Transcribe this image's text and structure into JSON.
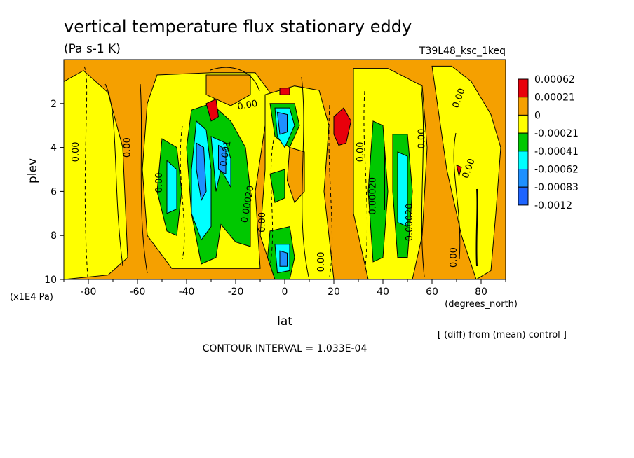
{
  "chart_data": {
    "type": "heatmap",
    "title": "vertical temperature flux stationary eddy",
    "units": "(Pa s-1 K)",
    "run_label": "T39L48_ksc_1keq",
    "xlabel": "lat",
    "x_units": "(degrees_north)",
    "ylabel": "plev",
    "y_units": "(x1E4 Pa)",
    "xlim": [
      -90,
      90
    ],
    "ylim": [
      10,
      0
    ],
    "x_ticks": [
      "-80",
      "-60",
      "-40",
      "-20",
      "0",
      "20",
      "40",
      "60",
      "80"
    ],
    "y_ticks": [
      "2",
      "4",
      "6",
      "8",
      "10"
    ],
    "footnote": "[ (diff) from (mean) control ]",
    "contour_interval": "CONTOUR INTERVAL = 1.033E-04",
    "colorbar": {
      "labels": [
        "0.00062",
        "0.00021",
        "0",
        "-0.00021",
        "-0.00041",
        "-0.00062",
        "-0.00083",
        "-0.0012"
      ],
      "colors": [
        "#e8000b",
        "#f5a000",
        "#ffff00",
        "#00c800",
        "#00ffff",
        "#1e90ff",
        "#1e64ff"
      ]
    },
    "background_color": "#f5a000",
    "regions": [
      {
        "color": "#ffff00",
        "pts": [
          [
            -90,
            1
          ],
          [
            -82,
            0.5
          ],
          [
            -72,
            1.5
          ],
          [
            -66,
            4
          ],
          [
            -64,
            9
          ],
          [
            -72,
            9.8
          ],
          [
            -90,
            10
          ]
        ]
      },
      {
        "color": "#ffff00",
        "pts": [
          [
            -52,
            0.7
          ],
          [
            -30,
            0.6
          ],
          [
            -12,
            0.6
          ],
          [
            -6,
            1.5
          ],
          [
            -8,
            3
          ],
          [
            -12,
            6
          ],
          [
            -10,
            9.5
          ],
          [
            -26,
            9.5
          ],
          [
            -46,
            9.5
          ],
          [
            -56,
            8
          ],
          [
            -58,
            5
          ],
          [
            -56,
            2
          ]
        ]
      },
      {
        "color": "#ffff00",
        "pts": [
          [
            -8,
            1.6
          ],
          [
            4,
            1.2
          ],
          [
            14,
            1.4
          ],
          [
            18,
            3
          ],
          [
            16,
            6
          ],
          [
            20,
            10
          ],
          [
            -4,
            10
          ],
          [
            -10,
            8
          ],
          [
            -8,
            5
          ]
        ]
      },
      {
        "color": "#ffff00",
        "pts": [
          [
            28,
            0.4
          ],
          [
            42,
            0.4
          ],
          [
            56,
            1.2
          ],
          [
            58,
            4
          ],
          [
            56,
            8
          ],
          [
            52,
            10
          ],
          [
            34,
            10
          ],
          [
            28,
            7
          ],
          [
            28,
            3
          ]
        ]
      },
      {
        "color": "#ffff00",
        "pts": [
          [
            60,
            0.3
          ],
          [
            68,
            0.3
          ],
          [
            76,
            1
          ],
          [
            84,
            2.5
          ],
          [
            88,
            4
          ],
          [
            86,
            7
          ],
          [
            84,
            9.6
          ],
          [
            78,
            10
          ],
          [
            72,
            8
          ],
          [
            66,
            5
          ]
        ]
      },
      {
        "color": "#f5a000",
        "pts": [
          [
            2,
            4
          ],
          [
            8,
            4.2
          ],
          [
            8,
            6
          ],
          [
            4,
            6.5
          ],
          [
            1,
            5.5
          ]
        ]
      },
      {
        "color": "#f5a000",
        "pts": [
          [
            -32,
            0.7
          ],
          [
            -14,
            0.7
          ],
          [
            -14,
            1.6
          ],
          [
            -22,
            2.1
          ],
          [
            -32,
            1.6
          ]
        ]
      },
      {
        "color": "#00c800",
        "pts": [
          [
            -38,
            2.3
          ],
          [
            -30,
            2
          ],
          [
            -22,
            2.8
          ],
          [
            -16,
            4
          ],
          [
            -14,
            6
          ],
          [
            -14,
            8.5
          ],
          [
            -20,
            8.3
          ],
          [
            -26,
            7.5
          ],
          [
            -28,
            9
          ],
          [
            -34,
            9.3
          ],
          [
            -38,
            7
          ],
          [
            -40,
            4
          ]
        ]
      },
      {
        "color": "#00c800",
        "pts": [
          [
            -50,
            3.6
          ],
          [
            -44,
            4
          ],
          [
            -42,
            6
          ],
          [
            -44,
            8
          ],
          [
            -48,
            7.8
          ],
          [
            -52,
            6
          ]
        ]
      },
      {
        "color": "#00c800",
        "pts": [
          [
            -6,
            2
          ],
          [
            4,
            2
          ],
          [
            6,
            3
          ],
          [
            2,
            4
          ],
          [
            -4,
            3.5
          ]
        ]
      },
      {
        "color": "#00c800",
        "pts": [
          [
            -6,
            5.2
          ],
          [
            0,
            5
          ],
          [
            0,
            6.3
          ],
          [
            -4,
            6.5
          ]
        ]
      },
      {
        "color": "#00c800",
        "pts": [
          [
            -6,
            7.8
          ],
          [
            2,
            7.6
          ],
          [
            4,
            9
          ],
          [
            2,
            10
          ],
          [
            -4,
            10
          ],
          [
            -7,
            9
          ]
        ]
      },
      {
        "color": "#00c800",
        "pts": [
          [
            36,
            2.8
          ],
          [
            40,
            3
          ],
          [
            42,
            6
          ],
          [
            40,
            9
          ],
          [
            36,
            9.2
          ],
          [
            34,
            6
          ]
        ]
      },
      {
        "color": "#00c800",
        "pts": [
          [
            44,
            3.4
          ],
          [
            50,
            3.4
          ],
          [
            52,
            6
          ],
          [
            50,
            9
          ],
          [
            46,
            9
          ],
          [
            44,
            6
          ]
        ]
      },
      {
        "color": "#00ffff",
        "pts": [
          [
            -36,
            2.8
          ],
          [
            -32,
            3.2
          ],
          [
            -30,
            5
          ],
          [
            -30,
            7.6
          ],
          [
            -34,
            8.2
          ],
          [
            -38,
            7
          ],
          [
            -38,
            5
          ]
        ]
      },
      {
        "color": "#00ffff",
        "pts": [
          [
            -30,
            3.5
          ],
          [
            -24,
            3.8
          ],
          [
            -22,
            4.5
          ],
          [
            -22,
            5.8
          ],
          [
            -26,
            5
          ],
          [
            -28,
            6
          ]
        ]
      },
      {
        "color": "#00ffff",
        "pts": [
          [
            -48,
            4.6
          ],
          [
            -44,
            5
          ],
          [
            -44,
            6.8
          ],
          [
            -48,
            7
          ]
        ]
      },
      {
        "color": "#00ffff",
        "pts": [
          [
            -4,
            2.2
          ],
          [
            2,
            2.2
          ],
          [
            4,
            3
          ],
          [
            0,
            4
          ],
          [
            -3,
            3.5
          ]
        ]
      },
      {
        "color": "#00ffff",
        "pts": [
          [
            -4,
            8.4
          ],
          [
            2,
            8.4
          ],
          [
            2,
            9.6
          ],
          [
            -3,
            9.7
          ]
        ]
      },
      {
        "color": "#00ffff",
        "pts": [
          [
            46,
            4.2
          ],
          [
            50,
            4.4
          ],
          [
            50,
            7.6
          ],
          [
            46,
            7.4
          ]
        ]
      },
      {
        "color": "#1e90ff",
        "pts": [
          [
            -36,
            3.8
          ],
          [
            -33,
            4
          ],
          [
            -32,
            6
          ],
          [
            -34,
            6.4
          ],
          [
            -36,
            5
          ]
        ]
      },
      {
        "color": "#1e90ff",
        "pts": [
          [
            -27,
            3.9
          ],
          [
            -24,
            4.1
          ],
          [
            -24,
            5.2
          ],
          [
            -27,
            5
          ]
        ]
      },
      {
        "color": "#1e90ff",
        "pts": [
          [
            -3,
            2.4
          ],
          [
            1,
            2.5
          ],
          [
            1,
            3.3
          ],
          [
            -2,
            3.4
          ]
        ]
      },
      {
        "color": "#1e90ff",
        "pts": [
          [
            -2,
            8.7
          ],
          [
            1,
            8.8
          ],
          [
            1,
            9.4
          ],
          [
            -2,
            9.4
          ]
        ]
      },
      {
        "color": "#e8000b",
        "pts": [
          [
            -32,
            2
          ],
          [
            -28,
            1.8
          ],
          [
            -27,
            2.6
          ],
          [
            -30,
            2.8
          ]
        ]
      },
      {
        "color": "#e8000b",
        "pts": [
          [
            20,
            2.6
          ],
          [
            24,
            2.2
          ],
          [
            27,
            2.8
          ],
          [
            25,
            3.8
          ],
          [
            22,
            3.9
          ],
          [
            20,
            3.4
          ]
        ]
      },
      {
        "color": "#e8000b",
        "pts": [
          [
            -2,
            1.3
          ],
          [
            2,
            1.3
          ],
          [
            2,
            1.6
          ],
          [
            -2,
            1.6
          ]
        ]
      },
      {
        "color": "#e8000b",
        "pts": [
          [
            70,
            4.8
          ],
          [
            72,
            4.9
          ],
          [
            71,
            5.3
          ]
        ]
      }
    ],
    "contour_labels": [
      {
        "text": "0.00",
        "x": -84,
        "y": 4.2,
        "rot": -90
      },
      {
        "text": "0.00",
        "x": -63,
        "y": 4.0,
        "rot": -90
      },
      {
        "text": "0.00",
        "x": -15,
        "y": 2.2,
        "rot": -10
      },
      {
        "text": "0.00",
        "x": 16,
        "y": 9.2,
        "rot": -90
      },
      {
        "text": "0.00",
        "x": 32,
        "y": 4.2,
        "rot": -90
      },
      {
        "text": "0.00",
        "x": 57,
        "y": 3.6,
        "rot": -90
      },
      {
        "text": "0.00",
        "x": 72,
        "y": 1.8,
        "rot": -70
      },
      {
        "text": "0.00",
        "x": 76,
        "y": 5.0,
        "rot": -70
      },
      {
        "text": "0.00",
        "x": 70,
        "y": 9.0,
        "rot": -90
      },
      {
        "text": "0.00020",
        "x": -14,
        "y": 6.6,
        "rot": -80
      },
      {
        "text": "0.00020",
        "x": 37,
        "y": 6.2,
        "rot": -90
      },
      {
        "text": "0.00020",
        "x": 52,
        "y": 7.4,
        "rot": -90
      },
      {
        "text": "0.00",
        "x": -8,
        "y": 7.4,
        "rot": -90
      },
      {
        "text": "0.00",
        "x": -50,
        "y": 5.6,
        "rot": -90
      },
      {
        "text": "0.001",
        "x": -23,
        "y": 4.3,
        "rot": -80
      }
    ]
  }
}
